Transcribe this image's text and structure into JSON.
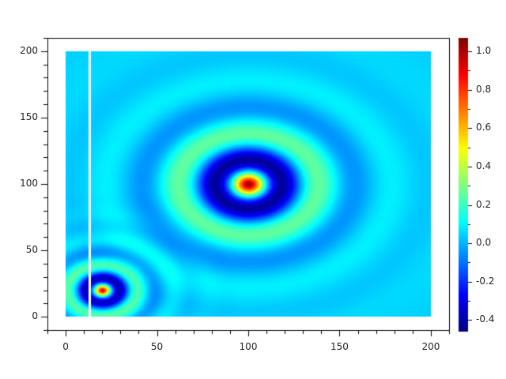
{
  "chart_data": {
    "type": "heatmap",
    "title": "",
    "xlabel": "",
    "ylabel": "",
    "xlim": [
      -10,
      210
    ],
    "ylim": [
      -10,
      210
    ],
    "data_extent": {
      "x": [
        0,
        200
      ],
      "y": [
        0,
        200
      ]
    },
    "xticks": [
      0,
      50,
      100,
      150,
      200
    ],
    "yticks": [
      0,
      50,
      100,
      150,
      200
    ],
    "colormap": "jet",
    "zlim": [
      -0.46,
      1.07
    ],
    "colorbar_ticks": [
      "-0.4",
      "-0.2",
      "0.0",
      "0.2",
      "0.4",
      "0.6",
      "0.8",
      "1.0"
    ],
    "features": [
      {
        "kind": "ripple-peak",
        "center": [
          100,
          100
        ],
        "peak_value": 1.0,
        "min_ring_value": -0.45
      },
      {
        "kind": "ripple-peak",
        "center": [
          20,
          20
        ],
        "peak_value": 1.0,
        "min_ring_value": -0.45
      },
      {
        "kind": "blank-column",
        "x": 13
      }
    ],
    "grid": false
  }
}
